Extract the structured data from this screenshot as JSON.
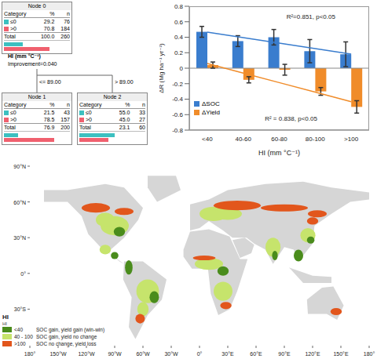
{
  "chart_data": {
    "type": "bar",
    "categories": [
      "<40",
      "40-60",
      "60-80",
      "80-100",
      ">100"
    ],
    "series": [
      {
        "name": "ΔSOC",
        "color": "#3a7dce",
        "values": [
          0.47,
          0.35,
          0.4,
          0.22,
          0.18
        ],
        "errors": [
          0.07,
          0.07,
          0.1,
          0.15,
          0.16
        ]
      },
      {
        "name": "ΔYield",
        "color": "#f08c2a",
        "values": [
          0.04,
          -0.15,
          -0.02,
          -0.3,
          -0.5
        ],
        "errors": [
          0.04,
          0.04,
          0.07,
          0.05,
          0.08
        ]
      }
    ],
    "x_label": "HI (mm °C⁻¹)",
    "y_label": "ΔR (Mg ha⁻¹ yr⁻¹)",
    "ylim": [
      -0.8,
      0.8
    ],
    "yticks": [
      -0.8,
      -0.6,
      -0.4,
      -0.2,
      0,
      0.2,
      0.4,
      0.6,
      0.8
    ],
    "grid": false,
    "legend": "lower left",
    "annotations": [
      {
        "text": "R²=0.851, p<0.05",
        "series": "ΔSOC"
      },
      {
        "text": "R² = 0.838, p<0.05",
        "series": "ΔYield"
      }
    ]
  },
  "tree": {
    "split": {
      "label": "HI (mm °C⁻¹)",
      "improvement": "Improvement=0.040",
      "left": "<= 89.00",
      "right": "> 89.00"
    },
    "header": [
      "Category",
      "%",
      "n"
    ],
    "categories": [
      {
        "label": "≤0",
        "color": "#3cc0c0"
      },
      {
        "label": ">0",
        "color": "#f0606e"
      }
    ],
    "total_label": "Total",
    "nodes": [
      {
        "label": "Node 0",
        "pct": [
          29.2,
          70.8
        ],
        "n": [
          76,
          184
        ],
        "total_pct": 100.0,
        "total_n": 260
      },
      {
        "label": "Node 1",
        "pct": [
          21.5,
          78.5
        ],
        "n": [
          43,
          157
        ],
        "total_pct": 76.9,
        "total_n": 200
      },
      {
        "label": "Node 2",
        "pct": [
          55.0,
          45.0
        ],
        "n": [
          33,
          27
        ],
        "total_pct": 23.1,
        "total_n": 60
      }
    ]
  },
  "map": {
    "lat_ticks": [
      {
        "value": 90,
        "label": "90°N"
      },
      {
        "value": 60,
        "label": "60°N"
      },
      {
        "value": 30,
        "label": "30°N"
      },
      {
        "value": 0,
        "label": "0°"
      },
      {
        "value": -30,
        "label": "30°S"
      }
    ],
    "lon_ticks": [
      {
        "value": -180,
        "label": "180°"
      },
      {
        "value": -150,
        "label": "150°W"
      },
      {
        "value": -120,
        "label": "120°W"
      },
      {
        "value": -90,
        "label": "90°W"
      },
      {
        "value": -60,
        "label": "60°W"
      },
      {
        "value": -30,
        "label": "30°W"
      },
      {
        "value": 0,
        "label": "0°"
      },
      {
        "value": 30,
        "label": "30°E"
      },
      {
        "value": 60,
        "label": "60°E"
      },
      {
        "value": 90,
        "label": "90°E"
      },
      {
        "value": 120,
        "label": "120°E"
      },
      {
        "value": 150,
        "label": "150°E"
      },
      {
        "value": 180,
        "label": "180°"
      }
    ],
    "legend_title": "HI",
    "legend_subtitle": "HI",
    "legend_items": [
      {
        "label": "<40",
        "description": "SOC gain, yield gain (win-win)",
        "color": "#4a8c1c"
      },
      {
        "label": "40 - 100",
        "description": "SOC gain, yield no change",
        "color": "#c6e46c"
      },
      {
        "label": ">100",
        "description": "SOC no change, yield loss",
        "color": "#e2561c"
      }
    ]
  }
}
